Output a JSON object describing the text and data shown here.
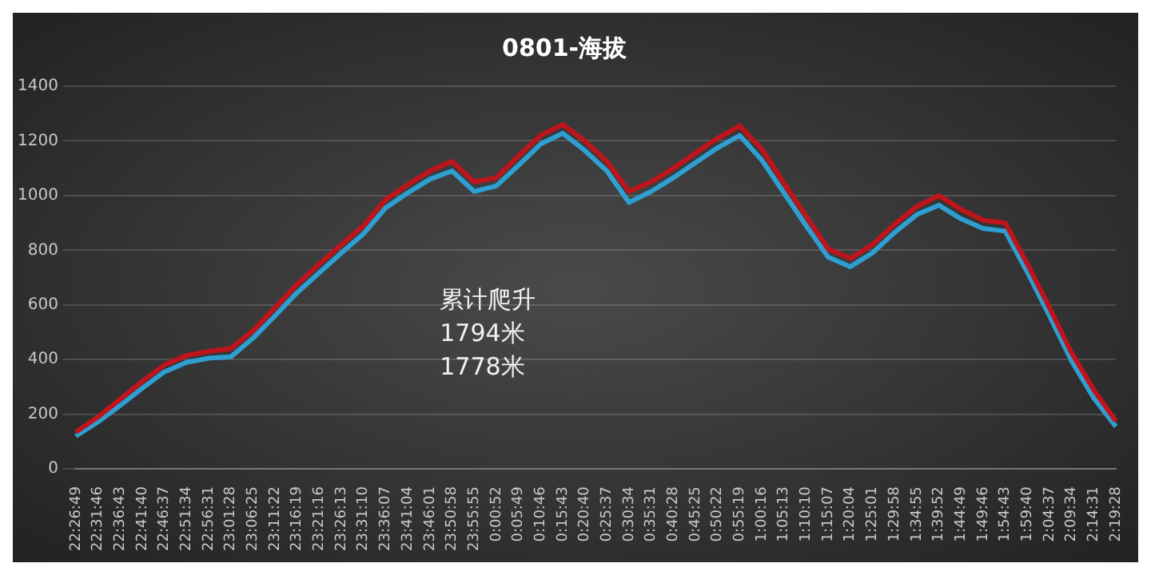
{
  "chart_data": {
    "type": "line",
    "title": "0801-海拔",
    "categories": [
      "22:26:49",
      "22:31:46",
      "22:36:43",
      "22:41:40",
      "22:46:37",
      "22:51:34",
      "22:56:31",
      "23:01:28",
      "23:06:25",
      "23:11:22",
      "23:16:19",
      "23:21:16",
      "23:26:13",
      "23:31:10",
      "23:36:07",
      "23:41:04",
      "23:46:01",
      "23:50:58",
      "23:55:55",
      "0:00:52",
      "0:05:49",
      "0:10:46",
      "0:15:43",
      "0:20:40",
      "0:25:37",
      "0:30:34",
      "0:35:31",
      "0:40:28",
      "0:45:25",
      "0:50:22",
      "0:55:19",
      "1:00:16",
      "1:05:13",
      "1:10:10",
      "1:15:07",
      "1:20:04",
      "1:25:01",
      "1:29:58",
      "1:34:55",
      "1:39:52",
      "1:44:49",
      "1:49:46",
      "1:54:43",
      "1:59:40",
      "2:04:37",
      "2:09:34",
      "2:14:31",
      "2:19:28"
    ],
    "series": [
      {
        "color": "#c0141c",
        "values": [
          135,
          190,
          255,
          320,
          380,
          415,
          430,
          440,
          505,
          590,
          675,
          750,
          820,
          890,
          985,
          1040,
          1090,
          1125,
          1050,
          1065,
          1145,
          1220,
          1260,
          1200,
          1125,
          1015,
          1050,
          1100,
          1155,
          1210,
          1255,
          1170,
          1045,
          925,
          805,
          770,
          820,
          895,
          960,
          1000,
          950,
          910,
          900,
          750,
          590,
          425,
          290,
          175
        ]
      },
      {
        "color": "#2e9fd0",
        "values": [
          120,
          172,
          232,
          295,
          355,
          390,
          405,
          410,
          478,
          560,
          645,
          718,
          790,
          860,
          955,
          1010,
          1060,
          1090,
          1015,
          1035,
          1110,
          1188,
          1228,
          1165,
          1090,
          975,
          1015,
          1065,
          1120,
          1175,
          1220,
          1130,
          1010,
          890,
          775,
          740,
          790,
          865,
          930,
          965,
          915,
          880,
          870,
          720,
          560,
          395,
          260,
          155
        ]
      }
    ],
    "ylim": [
      0,
      1400
    ],
    "yticks": [
      0,
      200,
      400,
      600,
      800,
      1000,
      1200,
      1400
    ],
    "grid": "y",
    "legend": false,
    "marker": "none",
    "line_style": "solid",
    "annotations": [
      "累计爬升",
      "1794米",
      "1778米"
    ]
  }
}
